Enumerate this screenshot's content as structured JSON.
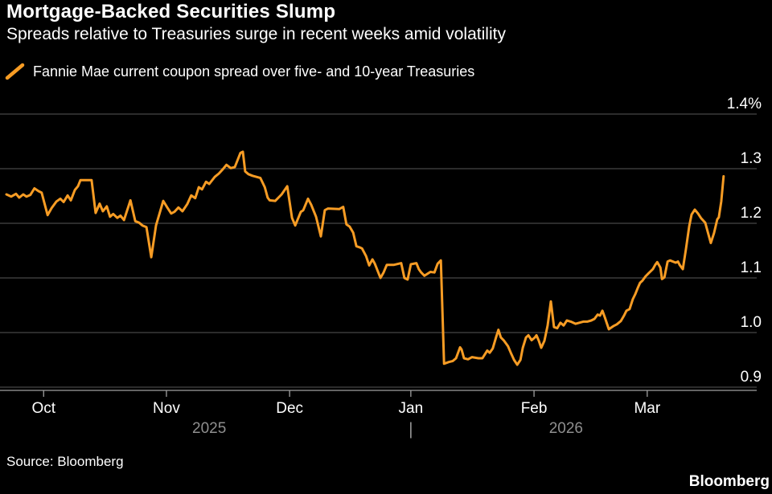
{
  "header": {
    "title": "Mortgage-Backed Securities Slump",
    "subtitle": "Spreads relative to Treasuries surge in recent weeks amid volatility"
  },
  "legend": {
    "label": "Fannie Mae current coupon spread over five- and 10-year Treasuries",
    "marker": "orange-slash"
  },
  "source": "Source: Bloomberg",
  "brand": "Bloomberg",
  "colors": {
    "background": "#000000",
    "line": "#F79C24",
    "gridline": "#464646",
    "axis": "#a0a0a0",
    "text": "#ffffff",
    "muted": "#8f8f8f"
  },
  "chart_data": {
    "type": "line",
    "title": "Mortgage-Backed Securities Slump",
    "ylabel": "%",
    "grid": true,
    "legend_position": "top-left",
    "y_axis": {
      "range": [
        0.875,
        1.41
      ],
      "ticks": [
        {
          "label": "1.4%",
          "value": 1.4
        },
        {
          "label": "1.3",
          "value": 1.3
        },
        {
          "label": "1.2",
          "value": 1.2
        },
        {
          "label": "1.1",
          "value": 1.1
        },
        {
          "label": "1.0",
          "value": 1.0
        },
        {
          "label": "0.9",
          "value": 0.9
        }
      ]
    },
    "x_axis": {
      "unit": "days",
      "start_date": "2025-09-22",
      "end_day": 179.3,
      "month_ticks": [
        {
          "label": "Oct",
          "day": 9.3
        },
        {
          "label": "Nov",
          "day": 40.0
        },
        {
          "label": "Dec",
          "day": 70.8
        },
        {
          "label": "Jan",
          "day": 101.1
        },
        {
          "label": "Feb",
          "day": 131.9
        },
        {
          "label": "Mar",
          "day": 160.2
        }
      ],
      "year_labels": [
        {
          "label": "2025",
          "day": 50.7
        },
        {
          "label": "2026",
          "day": 139.9
        }
      ],
      "year_divider": {
        "label": "|",
        "day": 101.1
      }
    },
    "series": [
      {
        "name": "Fannie Mae current coupon spread over five- and 10-year Treasuries",
        "color": "#F79C24",
        "points": [
          [
            0,
            1.253
          ],
          [
            1.2,
            1.249
          ],
          [
            2.4,
            1.254
          ],
          [
            3.2,
            1.247
          ],
          [
            4.2,
            1.253
          ],
          [
            5,
            1.249
          ],
          [
            6,
            1.252
          ],
          [
            7,
            1.264
          ],
          [
            8,
            1.259
          ],
          [
            8.8,
            1.256
          ],
          [
            10.3,
            1.215
          ],
          [
            11.3,
            1.228
          ],
          [
            12.5,
            1.24
          ],
          [
            13.5,
            1.245
          ],
          [
            14.3,
            1.239
          ],
          [
            15.3,
            1.251
          ],
          [
            16.1,
            1.242
          ],
          [
            17.1,
            1.261
          ],
          [
            17.9,
            1.268
          ],
          [
            18.5,
            1.279
          ],
          [
            21.3,
            1.279
          ],
          [
            22.3,
            1.219
          ],
          [
            23.3,
            1.236
          ],
          [
            24.1,
            1.222
          ],
          [
            25.1,
            1.231
          ],
          [
            25.9,
            1.212
          ],
          [
            26.7,
            1.217
          ],
          [
            27.7,
            1.21
          ],
          [
            28.5,
            1.214
          ],
          [
            29.4,
            1.206
          ],
          [
            31,
            1.242
          ],
          [
            32.2,
            1.204
          ],
          [
            33.2,
            1.201
          ],
          [
            34,
            1.196
          ],
          [
            35,
            1.193
          ],
          [
            36.2,
            1.138
          ],
          [
            37.4,
            1.196
          ],
          [
            39.2,
            1.241
          ],
          [
            40.2,
            1.229
          ],
          [
            41.2,
            1.218
          ],
          [
            42,
            1.221
          ],
          [
            43,
            1.229
          ],
          [
            44,
            1.222
          ],
          [
            45.2,
            1.235
          ],
          [
            46.2,
            1.251
          ],
          [
            47.2,
            1.246
          ],
          [
            48.1,
            1.266
          ],
          [
            48.9,
            1.262
          ],
          [
            49.9,
            1.276
          ],
          [
            50.7,
            1.272
          ],
          [
            52.1,
            1.285
          ],
          [
            53.1,
            1.291
          ],
          [
            54.1,
            1.299
          ],
          [
            55,
            1.307
          ],
          [
            56.1,
            1.301
          ],
          [
            57.1,
            1.303
          ],
          [
            58.5,
            1.329
          ],
          [
            59.1,
            1.331
          ],
          [
            59.7,
            1.295
          ],
          [
            60.5,
            1.29
          ],
          [
            61.5,
            1.287
          ],
          [
            62.5,
            1.285
          ],
          [
            63.5,
            1.283
          ],
          [
            64.6,
            1.266
          ],
          [
            65.3,
            1.247
          ],
          [
            65.8,
            1.242
          ],
          [
            67.2,
            1.241
          ],
          [
            68.8,
            1.253
          ],
          [
            70.2,
            1.268
          ],
          [
            71.4,
            1.21
          ],
          [
            72.2,
            1.196
          ],
          [
            73.6,
            1.221
          ],
          [
            74.2,
            1.224
          ],
          [
            75.4,
            1.245
          ],
          [
            76.2,
            1.234
          ],
          [
            77.4,
            1.212
          ],
          [
            78.6,
            1.176
          ],
          [
            79.6,
            1.224
          ],
          [
            80.4,
            1.227
          ],
          [
            83.2,
            1.226
          ],
          [
            84.2,
            1.23
          ],
          [
            85,
            1.198
          ],
          [
            85.8,
            1.194
          ],
          [
            86.7,
            1.183
          ],
          [
            87.5,
            1.158
          ],
          [
            88.3,
            1.156
          ],
          [
            88.9,
            1.154
          ],
          [
            89.9,
            1.14
          ],
          [
            90.7,
            1.123
          ],
          [
            91.5,
            1.134
          ],
          [
            92.1,
            1.126
          ],
          [
            93.5,
            1.1
          ],
          [
            94.3,
            1.11
          ],
          [
            95.1,
            1.124
          ],
          [
            96.9,
            1.124
          ],
          [
            98.7,
            1.127
          ],
          [
            99.5,
            1.1
          ],
          [
            100.3,
            1.097
          ],
          [
            101.1,
            1.125
          ],
          [
            102.5,
            1.127
          ],
          [
            103.1,
            1.116
          ],
          [
            103.7,
            1.11
          ],
          [
            104.5,
            1.104
          ],
          [
            106,
            1.111
          ],
          [
            107,
            1.11
          ],
          [
            107.8,
            1.126
          ],
          [
            108.6,
            1.132
          ],
          [
            109.4,
            0.943
          ],
          [
            110.6,
            0.946
          ],
          [
            111.6,
            0.948
          ],
          [
            112.4,
            0.953
          ],
          [
            113.4,
            0.973
          ],
          [
            113.8,
            0.969
          ],
          [
            114.4,
            0.953
          ],
          [
            115.4,
            0.951
          ],
          [
            116.4,
            0.955
          ],
          [
            118,
            0.953
          ],
          [
            119,
            0.953
          ],
          [
            119.6,
            0.96
          ],
          [
            120.2,
            0.967
          ],
          [
            120.8,
            0.963
          ],
          [
            121.6,
            0.971
          ],
          [
            122.4,
            0.991
          ],
          [
            123,
            1.005
          ],
          [
            123.6,
            0.991
          ],
          [
            124.4,
            0.985
          ],
          [
            125.4,
            0.975
          ],
          [
            126.1,
            0.963
          ],
          [
            126.9,
            0.95
          ],
          [
            127.7,
            0.941
          ],
          [
            128.5,
            0.95
          ],
          [
            129.1,
            0.972
          ],
          [
            129.9,
            0.991
          ],
          [
            130.5,
            0.995
          ],
          [
            131.3,
            0.986
          ],
          [
            132.1,
            0.991
          ],
          [
            132.5,
            0.995
          ],
          [
            133.1,
            0.985
          ],
          [
            133.7,
            0.972
          ],
          [
            134.5,
            0.985
          ],
          [
            135.3,
            1.013
          ],
          [
            136.1,
            1.057
          ],
          [
            136.9,
            1.01
          ],
          [
            137.7,
            1.008
          ],
          [
            138.5,
            1.018
          ],
          [
            139.3,
            1.013
          ],
          [
            140.1,
            1.022
          ],
          [
            141.1,
            1.02
          ],
          [
            142.3,
            1.016
          ],
          [
            144.2,
            1.02
          ],
          [
            145.2,
            1.02
          ],
          [
            146.2,
            1.022
          ],
          [
            147,
            1.025
          ],
          [
            147.8,
            1.033
          ],
          [
            148.4,
            1.031
          ],
          [
            149,
            1.04
          ],
          [
            149.6,
            1.028
          ],
          [
            150.6,
            1.006
          ],
          [
            151.8,
            1.012
          ],
          [
            152.6,
            1.015
          ],
          [
            153.6,
            1.021
          ],
          [
            154.4,
            1.031
          ],
          [
            155,
            1.04
          ],
          [
            155.8,
            1.043
          ],
          [
            156.6,
            1.061
          ],
          [
            157.2,
            1.07
          ],
          [
            157.8,
            1.081
          ],
          [
            158.4,
            1.091
          ],
          [
            159,
            1.095
          ],
          [
            159.8,
            1.103
          ],
          [
            160.6,
            1.109
          ],
          [
            161.6,
            1.116
          ],
          [
            162.2,
            1.124
          ],
          [
            162.7,
            1.129
          ],
          [
            163.5,
            1.119
          ],
          [
            163.9,
            1.098
          ],
          [
            164.5,
            1.101
          ],
          [
            165.3,
            1.13
          ],
          [
            165.9,
            1.132
          ],
          [
            167.3,
            1.128
          ],
          [
            167.9,
            1.13
          ],
          [
            168.3,
            1.124
          ],
          [
            169.1,
            1.116
          ],
          [
            169.9,
            1.154
          ],
          [
            170.7,
            1.195
          ],
          [
            171.3,
            1.216
          ],
          [
            172.1,
            1.225
          ],
          [
            172.9,
            1.218
          ],
          [
            173.7,
            1.209
          ],
          [
            174.7,
            1.201
          ],
          [
            175.5,
            1.18
          ],
          [
            176.1,
            1.164
          ],
          [
            176.9,
            1.182
          ],
          [
            177.7,
            1.207
          ],
          [
            178.1,
            1.211
          ],
          [
            178.7,
            1.24
          ],
          [
            179.3,
            1.286
          ]
        ]
      }
    ]
  }
}
